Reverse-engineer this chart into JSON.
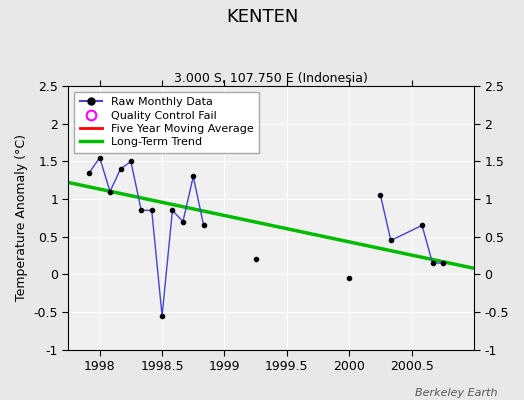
{
  "title": "KENTEN",
  "subtitle": "3.000 S, 107.750 E (Indonesia)",
  "ylabel": "Temperature Anomaly (°C)",
  "watermark": "Berkeley Earth",
  "xlim": [
    1997.75,
    2001.0
  ],
  "ylim": [
    -1.0,
    2.5
  ],
  "xticks": [
    1998,
    1998.5,
    1999,
    1999.5,
    2000,
    2000.5
  ],
  "yticks": [
    -1,
    -0.5,
    0,
    0.5,
    1,
    1.5,
    2,
    2.5
  ],
  "fig_bg": "#e8e8e8",
  "plot_bg": "#f0f0f0",
  "grid_color": "#ffffff",
  "raw_line_color": "#4444cc",
  "raw_marker_color": "black",
  "trend_color": "#00bb00",
  "qc_color": "magenta",
  "ma_color": "red",
  "raw_x": [
    1997.917,
    1998.0,
    1998.083,
    1998.167,
    1998.25,
    1998.333,
    1998.417,
    1998.5,
    1998.583,
    1998.667,
    1998.75,
    1998.833,
    1999.25,
    2000.0,
    2000.25,
    2000.333,
    2000.583,
    2000.667,
    2000.75
  ],
  "raw_y": [
    1.35,
    1.55,
    1.1,
    1.4,
    1.5,
    0.85,
    0.85,
    -0.55,
    0.85,
    0.7,
    1.3,
    0.65,
    0.2,
    -0.05,
    1.05,
    0.45,
    0.65,
    0.15,
    0.15
  ],
  "connected_segment1": [
    0,
    1,
    2,
    3,
    4,
    5,
    6,
    7,
    8,
    9,
    10,
    11
  ],
  "isolated_point": [
    12,
    13
  ],
  "connected_segment2": [
    14,
    15,
    16,
    17,
    18
  ],
  "trend_x": [
    1997.75,
    2001.0
  ],
  "trend_y": [
    1.22,
    0.08
  ]
}
